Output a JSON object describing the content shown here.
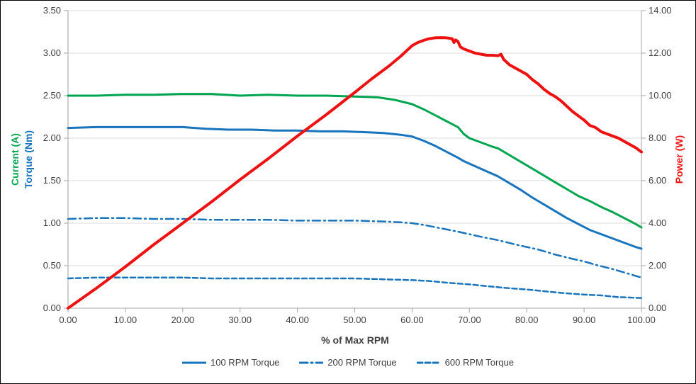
{
  "chart_data": {
    "type": "line",
    "title": "",
    "x_axis": {
      "label": "% of Max RPM",
      "min": 0,
      "max": 100,
      "tick_step": 10
    },
    "y_left": {
      "labels": [
        {
          "text": "Current (A)",
          "color": "#00A550"
        },
        {
          "text": "Torque (Nm)",
          "color": "#1874BD"
        }
      ],
      "min": 0,
      "max": 3.5,
      "tick_step": 0.5
    },
    "y_right": {
      "label": "Power (W)",
      "color": "#EE1111",
      "min": 0,
      "max": 14,
      "tick_step": 2
    },
    "colors": {
      "grid": "#D9D9D9",
      "axis": "#A6A6A6",
      "tick_text": "#404040"
    },
    "grid": "horizontal-major",
    "legend_position": "bottom",
    "series": [
      {
        "id": "current",
        "name": "Current (A)",
        "axis": "left",
        "color": "#00A550",
        "width": 3,
        "dash": "",
        "points": [
          [
            0,
            2.5
          ],
          [
            5,
            2.5
          ],
          [
            10,
            2.51
          ],
          [
            15,
            2.51
          ],
          [
            20,
            2.52
          ],
          [
            25,
            2.52
          ],
          [
            30,
            2.5
          ],
          [
            35,
            2.51
          ],
          [
            40,
            2.5
          ],
          [
            45,
            2.5
          ],
          [
            50,
            2.49
          ],
          [
            54,
            2.48
          ],
          [
            57,
            2.45
          ],
          [
            60,
            2.4
          ],
          [
            62,
            2.34
          ],
          [
            64,
            2.27
          ],
          [
            66,
            2.2
          ],
          [
            68,
            2.13
          ],
          [
            69,
            2.05
          ],
          [
            70,
            2.0
          ],
          [
            72,
            1.95
          ],
          [
            74,
            1.9
          ],
          [
            75,
            1.88
          ],
          [
            77,
            1.8
          ],
          [
            79,
            1.72
          ],
          [
            81,
            1.64
          ],
          [
            83,
            1.56
          ],
          [
            85,
            1.48
          ],
          [
            87,
            1.4
          ],
          [
            89,
            1.32
          ],
          [
            91,
            1.26
          ],
          [
            93,
            1.19
          ],
          [
            95,
            1.13
          ],
          [
            97,
            1.06
          ],
          [
            99,
            0.99
          ],
          [
            100,
            0.95
          ]
        ]
      },
      {
        "id": "torque-100-rpm",
        "name": "100 RPM Torque",
        "axis": "left",
        "color": "#1874BD",
        "width": 3,
        "dash": "",
        "points": [
          [
            0,
            2.12
          ],
          [
            5,
            2.13
          ],
          [
            10,
            2.13
          ],
          [
            15,
            2.13
          ],
          [
            20,
            2.13
          ],
          [
            24,
            2.11
          ],
          [
            28,
            2.1
          ],
          [
            32,
            2.1
          ],
          [
            36,
            2.09
          ],
          [
            40,
            2.09
          ],
          [
            44,
            2.08
          ],
          [
            48,
            2.08
          ],
          [
            52,
            2.07
          ],
          [
            55,
            2.06
          ],
          [
            58,
            2.04
          ],
          [
            60,
            2.02
          ],
          [
            62,
            1.97
          ],
          [
            64,
            1.91
          ],
          [
            66,
            1.84
          ],
          [
            68,
            1.77
          ],
          [
            69,
            1.73
          ],
          [
            70,
            1.7
          ],
          [
            72,
            1.64
          ],
          [
            74,
            1.58
          ],
          [
            75,
            1.55
          ],
          [
            77,
            1.47
          ],
          [
            79,
            1.39
          ],
          [
            81,
            1.3
          ],
          [
            83,
            1.22
          ],
          [
            85,
            1.14
          ],
          [
            87,
            1.06
          ],
          [
            89,
            0.99
          ],
          [
            91,
            0.92
          ],
          [
            93,
            0.87
          ],
          [
            95,
            0.82
          ],
          [
            97,
            0.77
          ],
          [
            99,
            0.72
          ],
          [
            100,
            0.7
          ]
        ]
      },
      {
        "id": "torque-200-rpm",
        "name": "200 RPM Torque",
        "axis": "left",
        "color": "#1874BD",
        "width": 2.5,
        "dash": "11 5 2 5",
        "points": [
          [
            0,
            1.05
          ],
          [
            5,
            1.06
          ],
          [
            10,
            1.06
          ],
          [
            15,
            1.05
          ],
          [
            20,
            1.05
          ],
          [
            25,
            1.04
          ],
          [
            30,
            1.04
          ],
          [
            35,
            1.04
          ],
          [
            40,
            1.03
          ],
          [
            45,
            1.03
          ],
          [
            50,
            1.03
          ],
          [
            55,
            1.02
          ],
          [
            58,
            1.01
          ],
          [
            60,
            1.0
          ],
          [
            62,
            0.98
          ],
          [
            65,
            0.94
          ],
          [
            68,
            0.9
          ],
          [
            70,
            0.87
          ],
          [
            72,
            0.84
          ],
          [
            75,
            0.8
          ],
          [
            78,
            0.75
          ],
          [
            80,
            0.72
          ],
          [
            82,
            0.69
          ],
          [
            85,
            0.63
          ],
          [
            88,
            0.58
          ],
          [
            90,
            0.55
          ],
          [
            92,
            0.51
          ],
          [
            95,
            0.46
          ],
          [
            98,
            0.4
          ],
          [
            100,
            0.36
          ]
        ]
      },
      {
        "id": "torque-600-rpm",
        "name": "600 RPM Torque",
        "axis": "left",
        "color": "#1874BD",
        "width": 2.5,
        "dash": "7 4",
        "points": [
          [
            0,
            0.35
          ],
          [
            5,
            0.36
          ],
          [
            10,
            0.36
          ],
          [
            15,
            0.36
          ],
          [
            20,
            0.36
          ],
          [
            25,
            0.35
          ],
          [
            30,
            0.35
          ],
          [
            35,
            0.35
          ],
          [
            40,
            0.35
          ],
          [
            45,
            0.35
          ],
          [
            50,
            0.35
          ],
          [
            55,
            0.34
          ],
          [
            60,
            0.33
          ],
          [
            63,
            0.32
          ],
          [
            66,
            0.3
          ],
          [
            70,
            0.28
          ],
          [
            73,
            0.26
          ],
          [
            76,
            0.24
          ],
          [
            80,
            0.22
          ],
          [
            83,
            0.2
          ],
          [
            86,
            0.18
          ],
          [
            90,
            0.16
          ],
          [
            93,
            0.15
          ],
          [
            96,
            0.13
          ],
          [
            100,
            0.12
          ]
        ]
      },
      {
        "id": "power",
        "name": "Power (W)",
        "axis": "right",
        "color": "#EE1111",
        "width": 4,
        "dash": "",
        "points": [
          [
            0,
            0
          ],
          [
            5,
            0.95
          ],
          [
            10,
            1.95
          ],
          [
            15,
            3.0
          ],
          [
            20,
            4.0
          ],
          [
            25,
            5.0
          ],
          [
            30,
            6.05
          ],
          [
            35,
            7.05
          ],
          [
            40,
            8.1
          ],
          [
            45,
            9.1
          ],
          [
            50,
            10.15
          ],
          [
            53,
            10.8
          ],
          [
            56,
            11.4
          ],
          [
            58,
            11.85
          ],
          [
            60,
            12.35
          ],
          [
            61,
            12.5
          ],
          [
            62,
            12.6
          ],
          [
            63,
            12.68
          ],
          [
            64,
            12.72
          ],
          [
            65,
            12.73
          ],
          [
            66,
            12.72
          ],
          [
            67,
            12.68
          ],
          [
            67.3,
            12.5
          ],
          [
            67.6,
            12.62
          ],
          [
            68,
            12.55
          ],
          [
            68.4,
            12.3
          ],
          [
            69,
            12.2
          ],
          [
            70,
            12.1
          ],
          [
            71,
            12.0
          ],
          [
            72,
            11.95
          ],
          [
            73,
            11.9
          ],
          [
            74,
            11.9
          ],
          [
            75,
            11.88
          ],
          [
            75.5,
            11.95
          ],
          [
            76,
            11.7
          ],
          [
            77,
            11.45
          ],
          [
            78,
            11.3
          ],
          [
            79,
            11.15
          ],
          [
            80,
            11.0
          ],
          [
            81,
            10.75
          ],
          [
            82,
            10.55
          ],
          [
            83,
            10.3
          ],
          [
            84,
            10.1
          ],
          [
            85,
            9.95
          ],
          [
            86,
            9.75
          ],
          [
            87,
            9.5
          ],
          [
            88,
            9.25
          ],
          [
            89,
            9.05
          ],
          [
            90,
            8.85
          ],
          [
            91,
            8.6
          ],
          [
            92,
            8.5
          ],
          [
            93,
            8.3
          ],
          [
            94,
            8.2
          ],
          [
            95,
            8.1
          ],
          [
            96,
            8.0
          ],
          [
            97,
            7.85
          ],
          [
            98,
            7.7
          ],
          [
            99,
            7.55
          ],
          [
            100,
            7.35
          ]
        ]
      }
    ],
    "legend": [
      {
        "label": "100 RPM Torque",
        "series_index": 1
      },
      {
        "label": "200 RPM Torque",
        "series_index": 2
      },
      {
        "label": "600 RPM Torque",
        "series_index": 3
      }
    ]
  }
}
